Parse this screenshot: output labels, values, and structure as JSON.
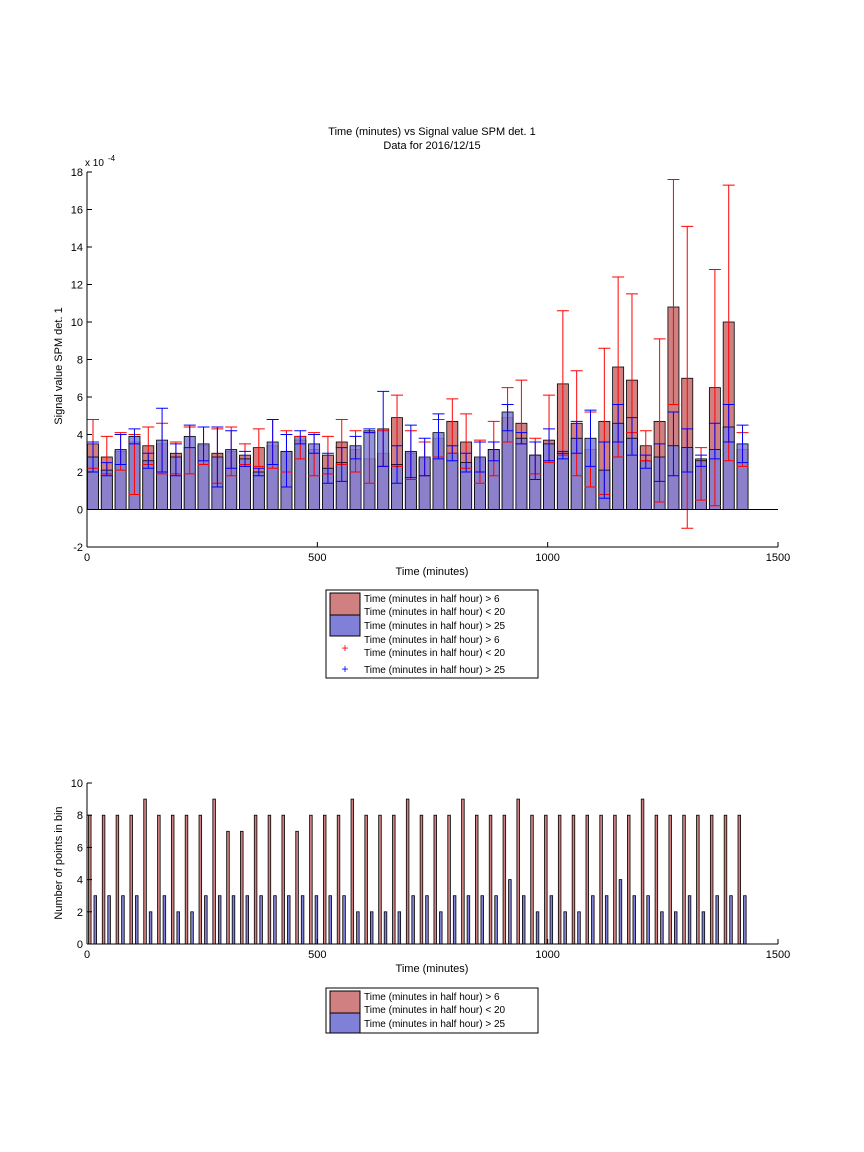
{
  "figure": {
    "title_line1": "Time (minutes) vs Signal value SPM det. 1",
    "title_line2": "Data for 2016/12/15"
  },
  "colors": {
    "red_bar": "#d08080",
    "blue_bar": "#8080d8",
    "red_err": "#ff0000",
    "blue_err": "#0000ff"
  },
  "legend_labels": {
    "red_bar": [
      "Time (minutes in half hour) > 6",
      "Time (minutes in half hour) < 20"
    ],
    "blue_bar": [
      "Time (minutes in half hour) > 25"
    ],
    "red_err": [
      "Time (minutes in half hour) > 6",
      "Time (minutes in half hour) < 20"
    ],
    "blue_err": [
      "Time (minutes in half hour) > 25"
    ]
  },
  "chart_data": [
    {
      "type": "bar",
      "title": "Time (minutes) vs Signal value SPM det. 1 / Data for 2016/12/15",
      "xlabel": "Time (minutes)",
      "ylabel": "Signal value SPM det. 1",
      "y_exponent_label": "x 10",
      "y_exponent": "-4",
      "xlim": [
        0,
        1500
      ],
      "ylim": [
        -2,
        18
      ],
      "xticks": [
        0,
        500,
        1000,
        1500
      ],
      "yticks": [
        -2,
        0,
        2,
        4,
        6,
        8,
        10,
        12,
        14,
        16,
        18
      ],
      "grid": false,
      "legend_position": "below-plot",
      "series": [
        {
          "name": "Time (minutes in half hour) > 6 Time (minutes in half hour) < 20",
          "x": [
            13,
            43,
            73,
            103,
            133,
            163,
            193,
            223,
            253,
            283,
            313,
            343,
            373,
            403,
            433,
            463,
            493,
            523,
            553,
            583,
            613,
            643,
            673,
            703,
            733,
            763,
            793,
            823,
            853,
            883,
            913,
            943,
            973,
            1003,
            1033,
            1063,
            1093,
            1123,
            1153,
            1183,
            1213,
            1243,
            1273,
            1303,
            1333,
            1363,
            1393,
            1423
          ],
          "values": [
            3.5,
            2.8,
            3.1,
            3.6,
            3.4,
            3.5,
            3.0,
            3.3,
            3.4,
            3.0,
            3.1,
            2.9,
            3.3,
            3.4,
            3.1,
            3.7,
            3.2,
            2.9,
            3.6,
            3.2,
            2.7,
            3.0,
            4.9,
            3.0,
            2.7,
            3.8,
            4.7,
            3.6,
            2.7,
            3.2,
            4.9,
            4.6,
            2.9,
            3.7,
            6.7,
            4.6,
            3.2,
            4.7,
            7.6,
            6.9,
            3.4,
            4.7,
            10.8,
            7.0,
            2.7,
            6.5,
            10.0,
            3.2
          ],
          "err_low": [
            1.3,
            0.9,
            1.0,
            2.8,
            1.0,
            1.6,
            1.1,
            1.4,
            1.0,
            1.6,
            1.3,
            0.5,
            1.0,
            1.2,
            1.1,
            1.0,
            1.4,
            1.0,
            1.2,
            1.2,
            1.3,
            0.7,
            2.6,
            1.4,
            0.9,
            1.0,
            1.7,
            1.4,
            1.3,
            1.4,
            1.3,
            1.1,
            1.0,
            1.2,
            3.8,
            2.8,
            2.0,
            3.9,
            4.8,
            2.8,
            0.8,
            4.3,
            5.2,
            8.0,
            2.2,
            6.3,
            7.4,
            0.9
          ],
          "err_high": [
            1.3,
            1.1,
            1.0,
            0.4,
            1.0,
            1.1,
            0.6,
            1.1,
            1.0,
            1.3,
            1.3,
            0.6,
            1.0,
            1.4,
            1.1,
            0.2,
            0.9,
            1.0,
            1.2,
            1.0,
            1.4,
            1.2,
            1.2,
            1.2,
            0.9,
            1.0,
            1.2,
            1.5,
            1.0,
            1.5,
            1.6,
            2.3,
            0.9,
            2.4,
            3.9,
            2.8,
            2.0,
            3.9,
            4.8,
            4.6,
            0.8,
            4.4,
            6.8,
            8.1,
            0.6,
            6.3,
            7.3,
            0.9
          ]
        },
        {
          "name": "Time (minutes in half hour) > 25",
          "x": [
            13,
            43,
            73,
            103,
            133,
            163,
            193,
            223,
            253,
            283,
            313,
            343,
            373,
            403,
            433,
            463,
            493,
            523,
            553,
            583,
            613,
            643,
            673,
            703,
            733,
            763,
            793,
            823,
            853,
            883,
            913,
            943,
            973,
            1003,
            1033,
            1063,
            1093,
            1123,
            1153,
            1183,
            1213,
            1243,
            1273,
            1303,
            1333,
            1363,
            1393,
            1423
          ],
          "values": [
            2.8,
            2.1,
            3.2,
            3.9,
            2.6,
            3.7,
            2.8,
            3.9,
            3.5,
            2.8,
            3.2,
            2.7,
            2.0,
            3.6,
            3.1,
            3.9,
            3.5,
            2.2,
            2.5,
            3.4,
            4.2,
            4.3,
            2.4,
            3.1,
            2.8,
            4.1,
            3.0,
            2.5,
            2.8,
            3.2,
            5.2,
            3.8,
            2.9,
            3.5,
            3.0,
            3.8,
            3.8,
            2.1,
            4.6,
            3.8,
            2.6,
            2.8,
            3.4,
            3.3,
            2.6,
            3.2,
            4.4,
            3.5
          ],
          "err_low": [
            0.8,
            0.3,
            0.8,
            0.4,
            0.4,
            1.7,
            1.0,
            0.6,
            0.9,
            1.6,
            1.0,
            0.4,
            0.2,
            1.2,
            1.9,
            0.4,
            0.5,
            0.8,
            1.0,
            0.7,
            0.1,
            2.0,
            1.0,
            1.4,
            1.0,
            1.4,
            0.4,
            0.5,
            0.8,
            0.6,
            1.0,
            0.3,
            1.3,
            0.9,
            0.3,
            0.8,
            1.5,
            1.5,
            1.0,
            0.9,
            0.4,
            1.3,
            1.6,
            1.3,
            0.3,
            0.5,
            0.8,
            1.0
          ],
          "err_high": [
            0.8,
            0.4,
            0.8,
            0.4,
            0.4,
            1.7,
            0.7,
            0.6,
            0.9,
            1.6,
            1.0,
            0.4,
            0.2,
            1.2,
            0.9,
            0.3,
            0.5,
            0.8,
            0.8,
            0.5,
            0.1,
            2.0,
            1.0,
            1.4,
            1.0,
            1.0,
            0.4,
            0.5,
            0.8,
            0.4,
            0.4,
            0.3,
            0.7,
            0.8,
            0.1,
            0.9,
            1.5,
            1.5,
            1.0,
            1.1,
            0.3,
            0.7,
            1.8,
            1.0,
            0.3,
            1.4,
            1.2,
            1.0
          ]
        }
      ]
    },
    {
      "type": "bar",
      "xlabel": "Time (minutes)",
      "ylabel": "Number of points in bin",
      "xlim": [
        0,
        1500
      ],
      "ylim": [
        0,
        10
      ],
      "xticks": [
        0,
        500,
        1000,
        1500
      ],
      "yticks": [
        0,
        2,
        4,
        6,
        8,
        10
      ],
      "grid": false,
      "legend_position": "below-plot",
      "series": [
        {
          "name": "Time (minutes in half hour) > 6 Time (minutes in half hour) < 20",
          "x": [
            6,
            36,
            66,
            96,
            126,
            156,
            186,
            216,
            246,
            276,
            306,
            336,
            366,
            396,
            426,
            456,
            486,
            516,
            546,
            576,
            606,
            636,
            666,
            696,
            726,
            756,
            786,
            816,
            846,
            876,
            906,
            936,
            966,
            996,
            1026,
            1056,
            1086,
            1116,
            1146,
            1176,
            1206,
            1236,
            1266,
            1296,
            1326,
            1356,
            1386,
            1416
          ],
          "values": [
            8,
            8,
            8,
            8,
            9,
            8,
            8,
            8,
            8,
            9,
            7,
            7,
            8,
            8,
            8,
            7,
            8,
            8,
            8,
            9,
            8,
            8,
            8,
            9,
            8,
            8,
            8,
            9,
            8,
            8,
            8,
            9,
            8,
            8,
            8,
            8,
            8,
            8,
            8,
            8,
            9,
            8,
            8,
            8,
            8,
            8,
            8,
            8
          ]
        },
        {
          "name": "Time (minutes in half hour) > 25",
          "x": [
            18,
            48,
            78,
            108,
            138,
            168,
            198,
            228,
            258,
            288,
            318,
            348,
            378,
            408,
            438,
            468,
            498,
            528,
            558,
            588,
            618,
            648,
            678,
            708,
            738,
            768,
            798,
            828,
            858,
            888,
            918,
            948,
            978,
            1008,
            1038,
            1068,
            1098,
            1128,
            1158,
            1188,
            1218,
            1248,
            1278,
            1308,
            1338,
            1368,
            1398,
            1428
          ],
          "values": [
            3,
            3,
            3,
            3,
            2,
            3,
            2,
            2,
            3,
            3,
            3,
            3,
            3,
            3,
            3,
            3,
            3,
            3,
            3,
            2,
            2,
            2,
            2,
            3,
            3,
            2,
            3,
            3,
            3,
            3,
            4,
            3,
            2,
            3,
            2,
            2,
            3,
            3,
            4,
            3,
            3,
            2,
            2,
            3,
            2,
            3,
            3,
            3
          ]
        }
      ]
    }
  ]
}
